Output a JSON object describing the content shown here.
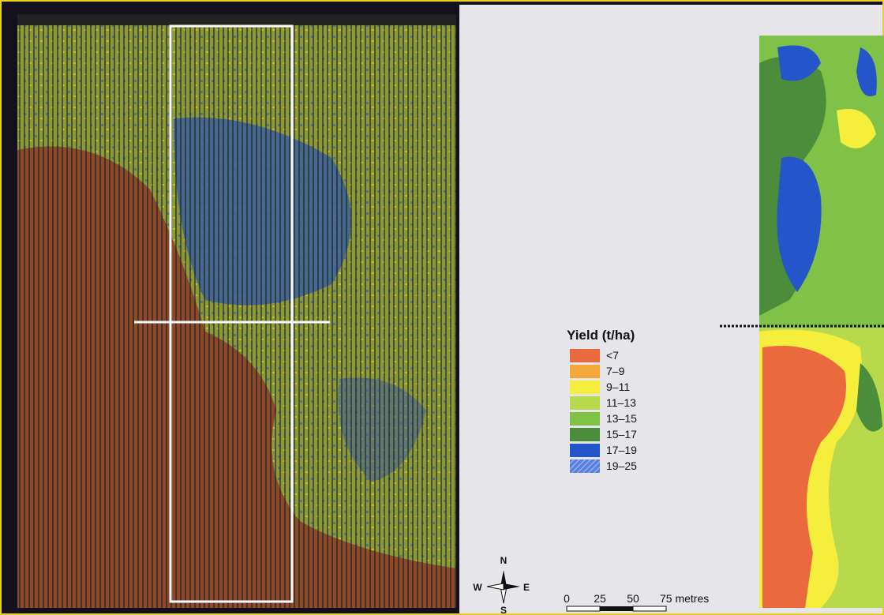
{
  "legend": {
    "title": "Yield (t/ha)",
    "items": [
      {
        "label": "<7",
        "color": "#ea6a3e"
      },
      {
        "label": "7–9",
        "color": "#f4a83a"
      },
      {
        "label": "9–11",
        "color": "#f6ee3c"
      },
      {
        "label": "11–13",
        "color": "#b9d94c"
      },
      {
        "label": "13–15",
        "color": "#80c148"
      },
      {
        "label": "15–17",
        "color": "#4b8d3b"
      },
      {
        "label": "17–19",
        "color": "#2456c9"
      },
      {
        "label": "19–25",
        "color": "#5a7fdc"
      }
    ]
  },
  "compass": {
    "north": "N",
    "south": "S",
    "west": "W",
    "east": "E"
  },
  "scale_bar": {
    "labels": [
      "0",
      "25",
      "50",
      "75 metres"
    ]
  }
}
